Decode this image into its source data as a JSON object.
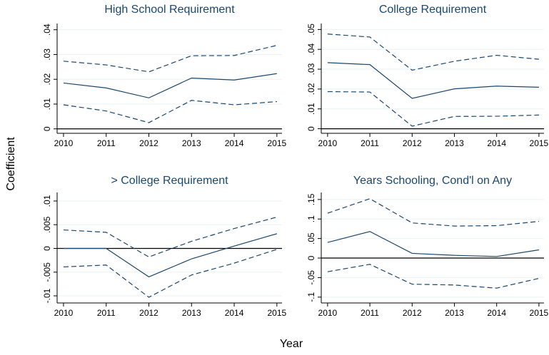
{
  "y_label": "Coefficient",
  "x_label": "Year",
  "chart_data": [
    {
      "type": "line",
      "title": "High School Requirement",
      "x": [
        2010,
        2011,
        2012,
        2013,
        2014,
        2015
      ],
      "xlim": [
        2009.85,
        2015.12
      ],
      "xticks": [
        2010,
        2011,
        2012,
        2013,
        2014,
        2015
      ],
      "ylim": [
        -0.0018,
        0.0425
      ],
      "yticks": [
        0,
        {
          "value": 0.01,
          "label": ".01"
        },
        {
          "value": 0.02,
          "label": ".02"
        },
        {
          "value": 0.03,
          "label": ".03"
        },
        {
          "value": 0.04,
          "label": ".04"
        }
      ],
      "grid": true,
      "zero_line": true,
      "series": [
        {
          "color": "#1a476f",
          "dash": false,
          "values": [
            0.0185,
            0.0165,
            0.0125,
            0.0205,
            0.0197,
            0.0223
          ]
        },
        {
          "color": "#1a476f",
          "dash": true,
          "values": [
            0.0273,
            0.0258,
            0.023,
            0.0295,
            0.0296,
            0.0337
          ]
        },
        {
          "color": "#1a476f",
          "dash": true,
          "values": [
            0.0097,
            0.0072,
            0.0025,
            0.0115,
            0.0097,
            0.011
          ]
        }
      ]
    },
    {
      "type": "line",
      "title": "College Requirement",
      "x": [
        2010,
        2011,
        2012,
        2013,
        2014,
        2015
      ],
      "xlim": [
        2009.85,
        2015.12
      ],
      "xticks": [
        2010,
        2011,
        2012,
        2013,
        2014,
        2015
      ],
      "ylim": [
        -0.0023,
        0.053
      ],
      "yticks": [
        0,
        {
          "value": 0.01,
          "label": ".01"
        },
        {
          "value": 0.02,
          "label": ".02"
        },
        {
          "value": 0.03,
          "label": ".03"
        },
        {
          "value": 0.04,
          "label": ".04"
        },
        {
          "value": 0.05,
          "label": ".05"
        }
      ],
      "grid": true,
      "zero_line": true,
      "series": [
        {
          "color": "#1a476f",
          "dash": false,
          "values": [
            0.0333,
            0.0323,
            0.0153,
            0.0201,
            0.0215,
            0.0209
          ]
        },
        {
          "color": "#1a476f",
          "dash": true,
          "values": [
            0.0477,
            0.0462,
            0.0295,
            0.034,
            0.037,
            0.035
          ]
        },
        {
          "color": "#1a476f",
          "dash": true,
          "values": [
            0.0187,
            0.0185,
            0.0013,
            0.0062,
            0.0063,
            0.0069
          ]
        }
      ]
    },
    {
      "type": "line",
      "title": "> College Requirement",
      "x": [
        2010,
        2011,
        2012,
        2013,
        2014,
        2015
      ],
      "xlim": [
        2009.85,
        2015.12
      ],
      "xticks": [
        2010,
        2011,
        2012,
        2013,
        2014,
        2015
      ],
      "ylim": [
        -0.0115,
        0.0118
      ],
      "yticks": [
        {
          "value": -0.01,
          "label": "-.01"
        },
        {
          "value": -0.005,
          "label": "-.005"
        },
        0,
        {
          "value": 0.005,
          "label": ".005"
        },
        {
          "value": 0.01,
          "label": ".01"
        }
      ],
      "grid": true,
      "zero_line": true,
      "series": [
        {
          "color": "#1a476f",
          "dash": false,
          "values": [
            0,
            0,
            -0.006,
            -0.0022,
            0.0005,
            0.0031
          ]
        },
        {
          "color": "#1a476f",
          "dash": true,
          "values": [
            0.0039,
            0.0034,
            -0.0018,
            0.0015,
            0.0042,
            0.0066
          ]
        },
        {
          "color": "#1a476f",
          "dash": true,
          "values": [
            -0.0039,
            -0.0035,
            -0.0103,
            -0.0056,
            -0.0031,
            -0.0002
          ]
        }
      ]
    },
    {
      "type": "line",
      "title": "Years Schooling, Cond'l on Any",
      "x": [
        2010,
        2011,
        2012,
        2013,
        2014,
        2015
      ],
      "xlim": [
        2009.85,
        2015.12
      ],
      "xticks": [
        2010,
        2011,
        2012,
        2013,
        2014,
        2015
      ],
      "ylim": [
        -0.115,
        0.168
      ],
      "yticks": [
        {
          "value": -0.1,
          "label": "-.1"
        },
        {
          "value": -0.05,
          "label": "-.05"
        },
        0,
        {
          "value": 0.05,
          "label": ".05"
        },
        {
          "value": 0.1,
          "label": ".1"
        },
        {
          "value": 0.15,
          "label": ".15"
        }
      ],
      "grid": true,
      "zero_line": true,
      "series": [
        {
          "color": "#1a476f",
          "dash": false,
          "values": [
            0.04,
            0.068,
            0.012,
            0.007,
            0.004,
            0.021
          ]
        },
        {
          "color": "#1a476f",
          "dash": true,
          "values": [
            0.115,
            0.152,
            0.09,
            0.082,
            0.083,
            0.094
          ]
        },
        {
          "color": "#1a476f",
          "dash": true,
          "values": [
            -0.035,
            -0.016,
            -0.067,
            -0.069,
            -0.077,
            -0.052
          ]
        }
      ]
    }
  ]
}
